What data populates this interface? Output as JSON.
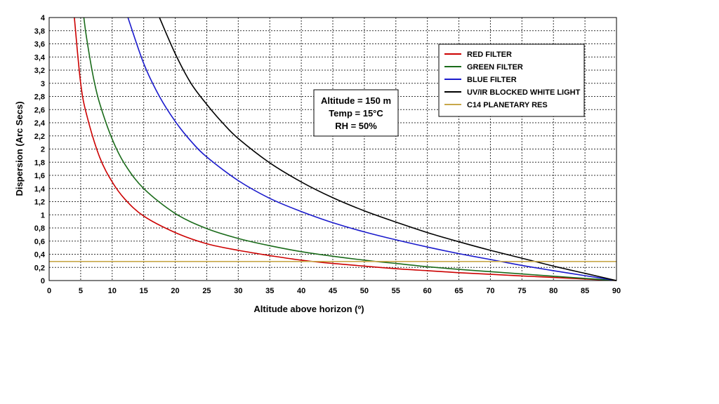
{
  "chart_data": {
    "type": "line",
    "title": "",
    "xlabel": "Altitude above horizon (º)",
    "ylabel": "Dispersion (Arc Secs)",
    "xlim": [
      0,
      90
    ],
    "ylim": [
      0,
      4
    ],
    "x_ticks": [
      "0",
      "5",
      "10",
      "15",
      "20",
      "25",
      "30",
      "35",
      "40",
      "45",
      "50",
      "55",
      "60",
      "65",
      "70",
      "75",
      "80",
      "85",
      "90"
    ],
    "y_ticks": [
      "0",
      "0,2",
      "0,4",
      "0,6",
      "0,8",
      "1",
      "1,2",
      "1,4",
      "1,6",
      "1,8",
      "2",
      "2,2",
      "2,4",
      "2,6",
      "2,8",
      "3",
      "3,2",
      "3,4",
      "3,6",
      "3,8",
      "4"
    ],
    "grid": true,
    "legend_position": "top-right",
    "annotation": {
      "lines": [
        "Altitude = 150 m",
        "Temp = 15°C",
        "RH = 50%"
      ]
    },
    "series": [
      {
        "name": "RED FILTER",
        "color": "#cc0000",
        "x": [
          4,
          5,
          6,
          8,
          10,
          12,
          15,
          20,
          25,
          30,
          35,
          40,
          45,
          50,
          55,
          60,
          65,
          70,
          75,
          80,
          85,
          90
        ],
        "y": [
          4.0,
          3.0,
          2.5,
          1.88,
          1.5,
          1.24,
          0.98,
          0.73,
          0.56,
          0.46,
          0.38,
          0.31,
          0.26,
          0.22,
          0.18,
          0.15,
          0.12,
          0.095,
          0.07,
          0.047,
          0.023,
          0.0
        ]
      },
      {
        "name": "GREEN FILTER",
        "color": "#1a6b1a",
        "x": [
          5.5,
          6,
          7,
          8,
          10,
          12,
          15,
          20,
          25,
          30,
          35,
          40,
          45,
          50,
          55,
          60,
          65,
          70,
          75,
          80,
          85,
          90
        ],
        "y": [
          4.0,
          3.65,
          3.1,
          2.7,
          2.15,
          1.77,
          1.4,
          1.02,
          0.79,
          0.64,
          0.53,
          0.44,
          0.37,
          0.31,
          0.26,
          0.21,
          0.17,
          0.135,
          0.1,
          0.066,
          0.033,
          0.0
        ]
      },
      {
        "name": "BLUE FILTER",
        "color": "#1a1acc",
        "x": [
          12.5,
          15,
          17.5,
          20,
          22.5,
          25,
          30,
          35,
          40,
          45,
          50,
          55,
          60,
          65,
          70,
          75,
          80,
          85,
          90
        ],
        "y": [
          4.0,
          3.3,
          2.8,
          2.42,
          2.12,
          1.88,
          1.52,
          1.25,
          1.05,
          0.88,
          0.74,
          0.62,
          0.51,
          0.41,
          0.32,
          0.23,
          0.15,
          0.075,
          0.0
        ]
      },
      {
        "name": "UV/IR BLOCKED WHITE LIGHT",
        "color": "#000000",
        "x": [
          17.5,
          20,
          22.5,
          25,
          27.5,
          30,
          35,
          40,
          45,
          50,
          55,
          60,
          65,
          70,
          75,
          80,
          85,
          90
        ],
        "y": [
          4.0,
          3.45,
          3.0,
          2.68,
          2.4,
          2.16,
          1.79,
          1.5,
          1.26,
          1.06,
          0.89,
          0.73,
          0.59,
          0.46,
          0.34,
          0.22,
          0.11,
          0.0
        ]
      },
      {
        "name": "C14 PLANETARY RES",
        "color": "#c8a84a",
        "x": [
          0,
          90
        ],
        "y": [
          0.29,
          0.29
        ]
      }
    ]
  }
}
